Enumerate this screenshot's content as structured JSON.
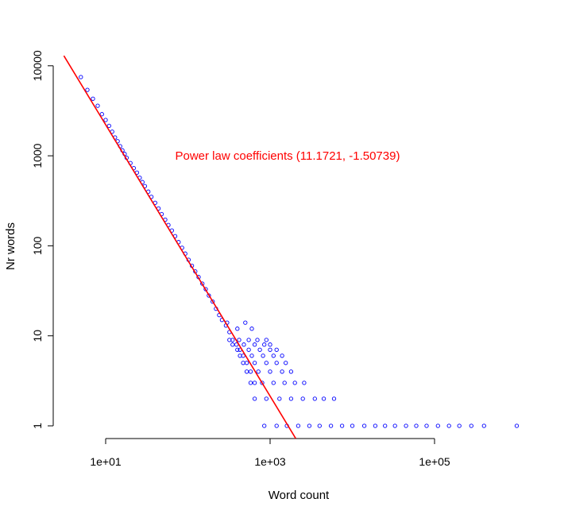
{
  "chart_data": {
    "type": "scatter",
    "title": "",
    "xlabel": "Word count",
    "ylabel": "Nr words",
    "x_scale": "log10",
    "y_scale": "log10",
    "xlim": [
      2.9,
      1300000
    ],
    "ylim": [
      0.8,
      12000
    ],
    "x_ticks": [
      {
        "value": 10,
        "label": "1e+01"
      },
      {
        "value": 1000,
        "label": "1e+03"
      },
      {
        "value": 100000,
        "label": "1e+05"
      }
    ],
    "y_ticks": [
      {
        "value": 1,
        "label": "1"
      },
      {
        "value": 10,
        "label": "10"
      },
      {
        "value": 100,
        "label": "100"
      },
      {
        "value": 1000,
        "label": "1000"
      },
      {
        "value": 10000,
        "label": "10000"
      }
    ],
    "grid": false,
    "annotation": {
      "text": "Power law coefficients (11.1721, -1.50739)",
      "x": 70,
      "y": 1000
    },
    "fit_line": {
      "name": "",
      "color": "#ff0000",
      "intercept_log": 11.1721,
      "slope": -1.50739
    },
    "series": [
      {
        "name": "",
        "color": "#0000ff",
        "marker": "open-circle",
        "points": [
          [
            5,
            7500
          ],
          [
            6,
            5400
          ],
          [
            7,
            4300
          ],
          [
            8,
            3600
          ],
          [
            9,
            2900
          ],
          [
            10,
            2500
          ],
          [
            11,
            2150
          ],
          [
            12,
            1850
          ],
          [
            13,
            1600
          ],
          [
            14,
            1450
          ],
          [
            15,
            1280
          ],
          [
            16,
            1150
          ],
          [
            17,
            1050
          ],
          [
            18,
            950
          ],
          [
            20,
            830
          ],
          [
            22,
            730
          ],
          [
            24,
            650
          ],
          [
            26,
            570
          ],
          [
            28,
            510
          ],
          [
            30,
            460
          ],
          [
            33,
            400
          ],
          [
            36,
            350
          ],
          [
            40,
            300
          ],
          [
            44,
            260
          ],
          [
            48,
            225
          ],
          [
            53,
            195
          ],
          [
            58,
            170
          ],
          [
            64,
            148
          ],
          [
            70,
            128
          ],
          [
            77,
            110
          ],
          [
            85,
            95
          ],
          [
            93,
            82
          ],
          [
            102,
            70
          ],
          [
            112,
            60
          ],
          [
            123,
            52
          ],
          [
            135,
            45
          ],
          [
            150,
            38
          ],
          [
            165,
            33
          ],
          [
            180,
            28
          ],
          [
            200,
            24
          ],
          [
            220,
            20
          ],
          [
            240,
            17
          ],
          [
            260,
            15
          ],
          [
            290,
            13
          ],
          [
            320,
            11
          ],
          [
            350,
            9
          ],
          [
            390,
            8
          ],
          [
            430,
            7
          ],
          [
            470,
            6
          ],
          [
            520,
            5
          ],
          [
            580,
            4
          ],
          [
            650,
            3
          ],
          [
            300,
            14
          ],
          [
            400,
            12
          ],
          [
            500,
            14
          ],
          [
            600,
            12
          ],
          [
            320,
            9
          ],
          [
            420,
            9
          ],
          [
            550,
            9
          ],
          [
            700,
            9
          ],
          [
            900,
            9
          ],
          [
            350,
            8
          ],
          [
            480,
            8
          ],
          [
            650,
            8
          ],
          [
            850,
            8
          ],
          [
            1000,
            8
          ],
          [
            400,
            7
          ],
          [
            550,
            7
          ],
          [
            750,
            7
          ],
          [
            1000,
            7
          ],
          [
            1200,
            7
          ],
          [
            430,
            6
          ],
          [
            600,
            6
          ],
          [
            820,
            6
          ],
          [
            1100,
            6
          ],
          [
            1400,
            6
          ],
          [
            470,
            5
          ],
          [
            650,
            5
          ],
          [
            900,
            5
          ],
          [
            1200,
            5
          ],
          [
            1550,
            5
          ],
          [
            520,
            4
          ],
          [
            720,
            4
          ],
          [
            1000,
            4
          ],
          [
            1400,
            4
          ],
          [
            1800,
            4
          ],
          [
            580,
            3
          ],
          [
            800,
            3
          ],
          [
            1100,
            3
          ],
          [
            1500,
            3
          ],
          [
            2000,
            3
          ],
          [
            2600,
            3
          ],
          [
            650,
            2
          ],
          [
            900,
            2
          ],
          [
            1300,
            2
          ],
          [
            1800,
            2
          ],
          [
            2500,
            2
          ],
          [
            3500,
            2
          ],
          [
            4500,
            2
          ],
          [
            6000,
            2
          ],
          [
            850,
            1
          ],
          [
            1200,
            1
          ],
          [
            1600,
            1
          ],
          [
            2200,
            1
          ],
          [
            3000,
            1
          ],
          [
            4000,
            1
          ],
          [
            5500,
            1
          ],
          [
            7500,
            1
          ],
          [
            10000,
            1
          ],
          [
            14000,
            1
          ],
          [
            19000,
            1
          ],
          [
            25000,
            1
          ],
          [
            33000,
            1
          ],
          [
            45000,
            1
          ],
          [
            60000,
            1
          ],
          [
            80000,
            1
          ],
          [
            110000,
            1
          ],
          [
            150000,
            1
          ],
          [
            200000,
            1
          ],
          [
            280000,
            1
          ],
          [
            400000,
            1
          ],
          [
            1000000,
            1
          ]
        ]
      }
    ]
  }
}
